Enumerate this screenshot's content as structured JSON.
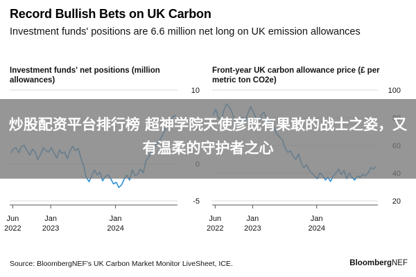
{
  "header": {
    "title": "Record Bullish Bets on UK Carbon",
    "subtitle": "Investment funds' positions are 6.6 million net long on UK emission allowances"
  },
  "banner": {
    "text": "炒股配资平台排行榜 超神学院天使彦既有果敢的战士之姿，又有温柔的守护者之心"
  },
  "footer": {
    "source": "Source: BloombergNEF's UK Carbon Market Monitor LiveSheet, ICE.",
    "brand_main": "Bloomberg",
    "brand_suffix": "NEF"
  },
  "colors": {
    "line": "#2b8fd6",
    "grid": "#d9d9d9",
    "axis": "#555555",
    "banner": "#787878"
  },
  "chart_data": [
    {
      "type": "line",
      "title": "Investment funds' net positions (million allowances)",
      "ylim": [
        -5,
        10
      ],
      "yticks": [
        10,
        5,
        0,
        -5
      ],
      "ytick_labels": [
        "10",
        "5",
        "0",
        "-5"
      ],
      "xlim": [
        "2022-05-15",
        "2024-12-15"
      ],
      "xticks": [
        "2022-06",
        "2023-01",
        "2024-01"
      ],
      "xtick_labels": [
        [
          "Jun",
          "2022"
        ],
        [
          "Jan",
          "2023"
        ],
        [
          "Jan",
          "2024"
        ]
      ],
      "grid": true,
      "series": [
        {
          "x": [
            "2022-05-20",
            "2022-06-05",
            "2022-06-20",
            "2022-07-05",
            "2022-07-20",
            "2022-08-05",
            "2022-08-20",
            "2022-09-05",
            "2022-09-20",
            "2022-10-05",
            "2022-10-20",
            "2022-11-05",
            "2022-11-20",
            "2022-12-05",
            "2022-12-20",
            "2023-01-05",
            "2023-01-20",
            "2023-02-05",
            "2023-02-20",
            "2023-03-05",
            "2023-03-20",
            "2023-04-05",
            "2023-04-20",
            "2023-05-05",
            "2023-05-20",
            "2023-06-05",
            "2023-06-20",
            "2023-07-05",
            "2023-07-20",
            "2023-08-05",
            "2023-08-20",
            "2023-09-05",
            "2023-09-20",
            "2023-10-05",
            "2023-10-20",
            "2023-11-05",
            "2023-11-20",
            "2023-12-05",
            "2023-12-20",
            "2024-01-05",
            "2024-01-20",
            "2024-02-05",
            "2024-02-20",
            "2024-03-05",
            "2024-03-20",
            "2024-04-05",
            "2024-04-20",
            "2024-05-05",
            "2024-05-20",
            "2024-06-05",
            "2024-06-20",
            "2024-07-05",
            "2024-07-20",
            "2024-08-05",
            "2024-08-20",
            "2024-09-05",
            "2024-09-20",
            "2024-10-05",
            "2024-10-20",
            "2024-11-05",
            "2024-11-20",
            "2024-12-05"
          ],
          "values": [
            1.5,
            2.0,
            2.2,
            1.5,
            2.4,
            2.5,
            1.8,
            1.2,
            2.0,
            1.6,
            0.6,
            1.3,
            2.2,
            1.8,
            1.6,
            2.2,
            1.4,
            0.8,
            1.9,
            1.4,
            1.6,
            0.7,
            1.8,
            2.4,
            1.8,
            2.1,
            0.8,
            -0.2,
            -1.8,
            -2.4,
            -1.6,
            -0.8,
            -1.5,
            -1.1,
            -2.3,
            -1.7,
            -1.5,
            -2.0,
            -2.7,
            -2.5,
            -3.2,
            -2.8,
            -2.0,
            -1.5,
            -2.2,
            -0.8,
            -1.6,
            -1.4,
            -0.7,
            -1.2,
            0.4,
            0.9,
            1.6,
            2.3,
            2.8,
            3.2,
            3.8,
            4.6,
            5.3,
            5.9,
            6.4,
            6.6
          ]
        }
      ]
    },
    {
      "type": "line",
      "title": "Front-year UK carbon allowance price (£ per metric ton CO2e)",
      "ylim": [
        20,
        100
      ],
      "yticks": [
        100,
        80,
        60,
        40,
        20
      ],
      "ytick_labels": [
        "100",
        "80",
        "60",
        "40",
        "20"
      ],
      "xlim": [
        "2022-05-15",
        "2024-12-15"
      ],
      "xticks": [
        "2022-06",
        "2023-01",
        "2024-01"
      ],
      "xtick_labels": [
        [
          "Jun",
          "2022"
        ],
        [
          "Jan",
          "2023"
        ],
        [
          "Jan",
          "2024"
        ]
      ],
      "grid": true,
      "series": [
        {
          "x": [
            "2022-05-20",
            "2022-06-05",
            "2022-06-20",
            "2022-07-05",
            "2022-07-20",
            "2022-08-05",
            "2022-08-20",
            "2022-09-05",
            "2022-09-20",
            "2022-10-05",
            "2022-10-20",
            "2022-11-05",
            "2022-11-20",
            "2022-12-05",
            "2022-12-20",
            "2023-01-05",
            "2023-01-20",
            "2023-02-05",
            "2023-02-20",
            "2023-03-05",
            "2023-03-20",
            "2023-04-05",
            "2023-04-20",
            "2023-05-05",
            "2023-05-20",
            "2023-06-05",
            "2023-06-20",
            "2023-07-05",
            "2023-07-20",
            "2023-08-05",
            "2023-08-20",
            "2023-09-05",
            "2023-09-20",
            "2023-10-05",
            "2023-10-20",
            "2023-11-05",
            "2023-11-20",
            "2023-12-05",
            "2023-12-20",
            "2024-01-05",
            "2024-01-20",
            "2024-02-05",
            "2024-02-20",
            "2024-03-05",
            "2024-03-20",
            "2024-04-05",
            "2024-04-20",
            "2024-05-05",
            "2024-05-20",
            "2024-06-05",
            "2024-06-20",
            "2024-07-05",
            "2024-07-20",
            "2024-08-05",
            "2024-08-20",
            "2024-09-05",
            "2024-09-20",
            "2024-10-05",
            "2024-10-20",
            "2024-11-05",
            "2024-11-20",
            "2024-12-05"
          ],
          "values": [
            82,
            86,
            80,
            78,
            85,
            90,
            88,
            84,
            78,
            74,
            76,
            80,
            78,
            83,
            88,
            84,
            80,
            78,
            82,
            84,
            80,
            76,
            78,
            72,
            68,
            66,
            64,
            58,
            55,
            56,
            52,
            50,
            54,
            47,
            44,
            46,
            42,
            40,
            38,
            36,
            40,
            38,
            35,
            37,
            34,
            38,
            40,
            43,
            39,
            42,
            36,
            40,
            37,
            35,
            38,
            37,
            39,
            38,
            40,
            44,
            43,
            45
          ]
        }
      ]
    }
  ]
}
